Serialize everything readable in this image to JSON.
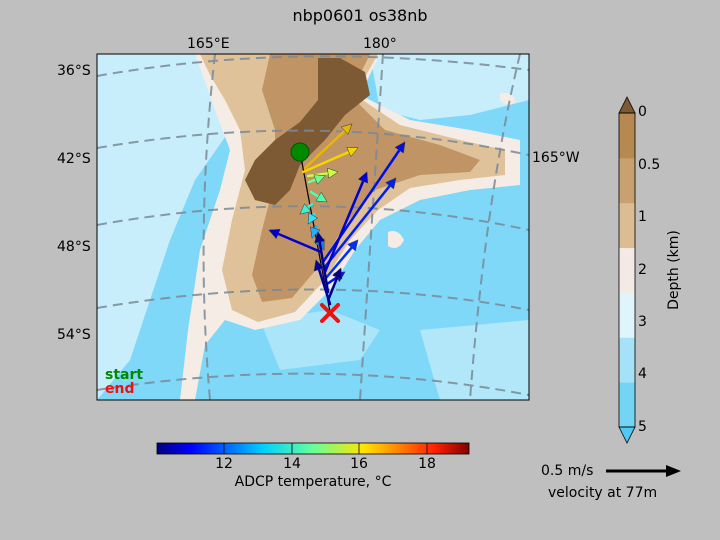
{
  "title": "nbp0601 os38nb",
  "map": {
    "lon_labels": [
      "165°E",
      "180°",
      "165°W"
    ],
    "lat_labels": [
      "36°S",
      "42°S",
      "48°S",
      "54°S"
    ],
    "legend_start": "start",
    "legend_end": "end",
    "colors": {
      "ocean_deep": "#7fd8f7",
      "ocean_mid": "#c8eefb",
      "shelf_pale": "#f5ece6",
      "land_tan": "#dfc29a",
      "land_mid": "#c09464",
      "land_dark": "#7d5a33",
      "graticule": "#7a8a96",
      "start_marker": "#008800",
      "end_marker": "#ee1111"
    }
  },
  "depth_colorbar": {
    "label": "Depth (km)",
    "ticks": [
      "0",
      "0.5",
      "1",
      "2",
      "3",
      "4",
      "5"
    ],
    "colors": [
      "#b5894f",
      "#c9a171",
      "#dcbc93",
      "#f4eae5",
      "#dff4fb",
      "#a6e2f7",
      "#74d4f5"
    ]
  },
  "temp_colorbar": {
    "label": "ADCP temperature, °C",
    "ticks": [
      "12",
      "14",
      "16",
      "18"
    ],
    "range": [
      10,
      19.3
    ]
  },
  "velocity_key": {
    "speed_label": "0.5 m/s",
    "depth_label": "velocity at 77m"
  }
}
